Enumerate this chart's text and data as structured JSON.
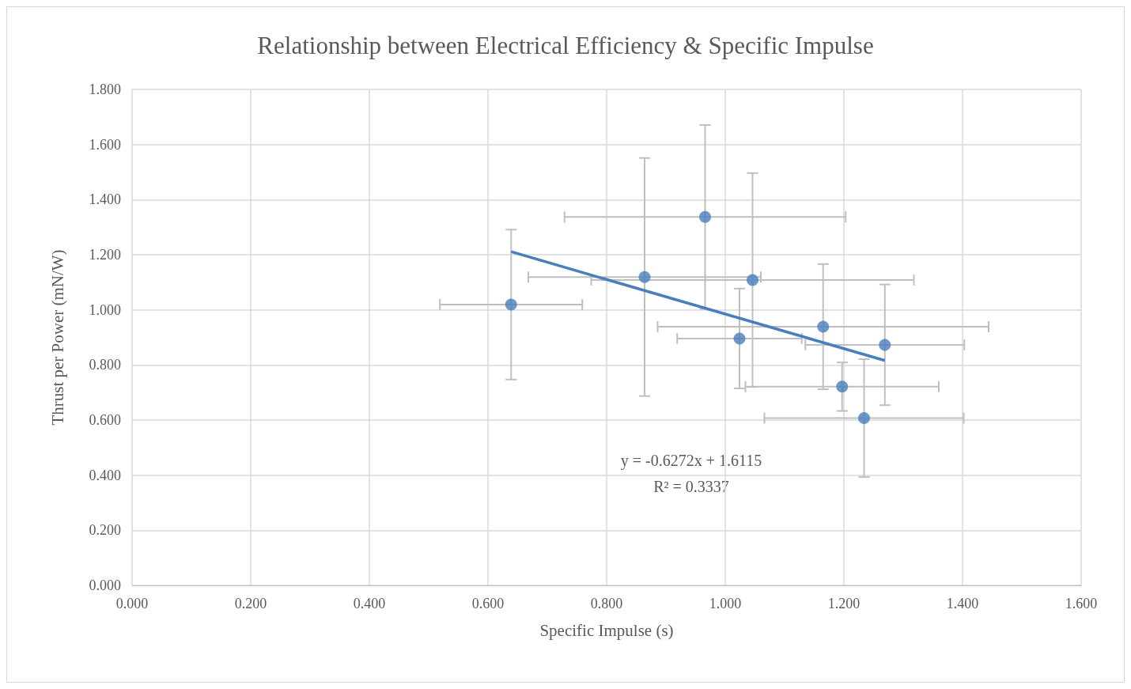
{
  "chart_data": {
    "type": "scatter",
    "title": "Relationship between Electrical Efficiency & Specific Impulse",
    "xlabel": "Specific Impulse (s)",
    "ylabel": "Thrust per Power (mN/W)",
    "xlim": [
      0,
      1.6
    ],
    "ylim": [
      0,
      1.8
    ],
    "xticks": [
      {
        "value": 0,
        "label": "0.000"
      },
      {
        "value": 0.2,
        "label": "0.200"
      },
      {
        "value": 0.4,
        "label": "0.400"
      },
      {
        "value": 0.6,
        "label": "0.600"
      },
      {
        "value": 0.8,
        "label": "0.800"
      },
      {
        "value": 1,
        "label": "1.000"
      },
      {
        "value": 1.2,
        "label": "1.200"
      },
      {
        "value": 1.4,
        "label": "1.400"
      },
      {
        "value": 1.6,
        "label": "1.600"
      }
    ],
    "yticks": [
      {
        "value": 0,
        "label": "0.000"
      },
      {
        "value": 0.2,
        "label": "0.200"
      },
      {
        "value": 0.4,
        "label": "0.400"
      },
      {
        "value": 0.6,
        "label": "0.600"
      },
      {
        "value": 0.8,
        "label": "0.800"
      },
      {
        "value": 1,
        "label": "1.000"
      },
      {
        "value": 1.2,
        "label": "1.200"
      },
      {
        "value": 1.4,
        "label": "1.400"
      },
      {
        "value": 1.6,
        "label": "1.600"
      },
      {
        "value": 1.8,
        "label": "1.800"
      }
    ],
    "grid": true,
    "series": [
      {
        "marker": "circle",
        "color": "#4a7ebb",
        "x": [
          0.639,
          0.864,
          0.966,
          1.046,
          1.024,
          1.165,
          1.269,
          1.197,
          1.234
        ],
        "values": [
          1.019,
          1.119,
          1.337,
          1.108,
          0.896,
          0.939,
          0.873,
          0.721,
          0.607
        ],
        "errors": [
          0.272,
          0.432,
          0.334,
          0.388,
          0.181,
          0.227,
          0.219,
          0.088,
          0.214
        ],
        "xerrors": [
          0.12,
          0.196,
          0.237,
          0.272,
          0.105,
          0.279,
          0.134,
          0.163,
          0.168
        ]
      },
      {
        "type": "line",
        "color": "#4a7ebb",
        "x": [
          0.639,
          1.269
        ],
        "values": [
          1.211,
          0.816
        ],
        "marker": "none"
      }
    ],
    "annotations": [
      "y = -0.6272x + 1.6115",
      "R² = 0.3337"
    ]
  }
}
